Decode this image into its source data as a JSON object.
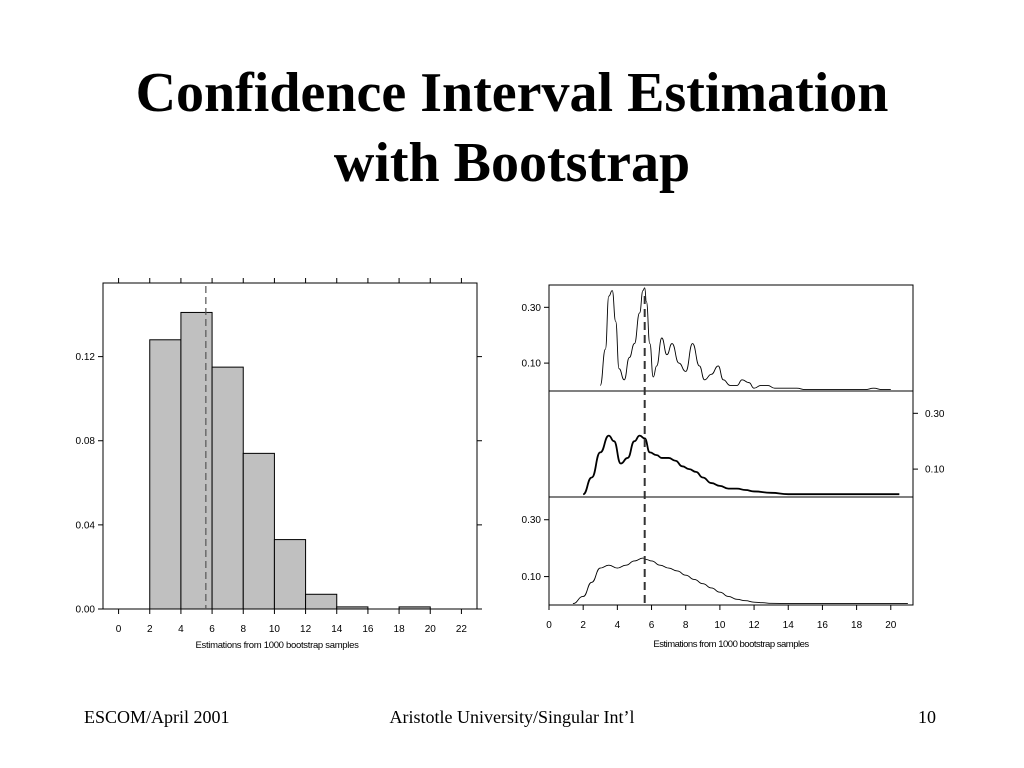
{
  "slide": {
    "title_line1": "Confidence Interval Estimation",
    "title_line2": "with Bootstrap"
  },
  "footer": {
    "left": "ESCOM/April 2001",
    "center": "Aristotle University/Singular Int’l",
    "right": "10"
  },
  "chart_data": [
    {
      "type": "bar",
      "xlabel": "Estimations from 1000 bootstrap samples",
      "ylabel": "",
      "bin_edges": [
        2,
        4,
        6,
        8,
        10,
        12,
        14,
        16,
        18,
        20,
        22
      ],
      "values": [
        0.128,
        0.141,
        0.115,
        0.074,
        0.033,
        0.007,
        0.001,
        0.0,
        0.001,
        0.0
      ],
      "x_ticks": [
        0,
        2,
        4,
        6,
        8,
        10,
        12,
        14,
        16,
        18,
        20,
        22
      ],
      "y_ticks": [
        0.0,
        0.04,
        0.08,
        0.12
      ],
      "y_tick_labels": [
        "0.00",
        "0.04",
        "0.08",
        "0.12"
      ],
      "xlim": [
        -1,
        23
      ],
      "ylim": [
        0,
        0.155
      ],
      "reference_line_x": 5.6,
      "bar_color": "#c0c0c0",
      "grid": false
    },
    {
      "type": "line",
      "xlabel": "Estimations from 1000 bootstrap samples",
      "x_ticks": [
        0,
        2,
        4,
        6,
        8,
        10,
        12,
        14,
        16,
        18,
        20
      ],
      "xlim": [
        0,
        21.3
      ],
      "reference_line_x": 5.6,
      "panels": [
        {
          "y_ticks": [
            0.1,
            0.3
          ],
          "y_tick_labels": [
            "0.10",
            "0.30"
          ],
          "y_axis_side": "left",
          "ylim": [
            0.0,
            0.38
          ],
          "x": [
            3.0,
            3.3,
            3.5,
            3.7,
            3.9,
            4.1,
            4.4,
            4.7,
            5.0,
            5.3,
            5.5,
            5.6,
            5.7,
            5.9,
            6.1,
            6.3,
            6.6,
            6.9,
            7.2,
            7.6,
            8.0,
            8.4,
            8.8,
            9.1,
            9.5,
            9.9,
            10.2,
            10.6,
            11.0,
            11.3,
            11.7,
            12.0,
            12.4,
            12.8,
            13.2,
            13.6,
            14.0,
            14.5,
            15.0,
            16.0,
            17.0,
            18.0,
            18.5,
            19.0,
            19.5,
            20.0
          ],
          "y": [
            0.02,
            0.15,
            0.34,
            0.36,
            0.25,
            0.08,
            0.04,
            0.12,
            0.17,
            0.28,
            0.36,
            0.37,
            0.32,
            0.17,
            0.05,
            0.09,
            0.19,
            0.13,
            0.17,
            0.1,
            0.07,
            0.17,
            0.09,
            0.04,
            0.06,
            0.09,
            0.04,
            0.02,
            0.02,
            0.04,
            0.03,
            0.01,
            0.02,
            0.02,
            0.01,
            0.01,
            0.01,
            0.01,
            0.005,
            0.005,
            0.005,
            0.005,
            0.005,
            0.01,
            0.005,
            0.005
          ]
        },
        {
          "y_ticks": [
            0.1,
            0.3
          ],
          "y_tick_labels": [
            "0.10",
            "0.30"
          ],
          "y_axis_side": "right",
          "ylim": [
            0.0,
            0.38
          ],
          "x": [
            2.0,
            2.5,
            3.0,
            3.5,
            3.8,
            4.2,
            4.6,
            5.0,
            5.3,
            5.6,
            5.9,
            6.3,
            6.6,
            7.0,
            7.4,
            7.8,
            8.2,
            8.6,
            9.0,
            9.5,
            10.0,
            10.5,
            11.0,
            11.5,
            12.0,
            13.0,
            14.0,
            15.0,
            16.0,
            17.0,
            18.0,
            19.0,
            20.0,
            20.5
          ],
          "y": [
            0.01,
            0.07,
            0.16,
            0.22,
            0.2,
            0.12,
            0.14,
            0.2,
            0.22,
            0.21,
            0.16,
            0.15,
            0.14,
            0.14,
            0.13,
            0.11,
            0.1,
            0.09,
            0.07,
            0.05,
            0.04,
            0.03,
            0.03,
            0.025,
            0.02,
            0.015,
            0.01,
            0.01,
            0.01,
            0.01,
            0.01,
            0.01,
            0.01,
            0.01
          ]
        },
        {
          "y_ticks": [
            0.1,
            0.3
          ],
          "y_tick_labels": [
            "0.10",
            "0.30"
          ],
          "y_axis_side": "left",
          "ylim": [
            0.0,
            0.38
          ],
          "x": [
            1.4,
            2.0,
            2.5,
            3.0,
            3.5,
            4.0,
            4.5,
            5.0,
            5.5,
            5.7,
            6.0,
            6.5,
            7.0,
            7.5,
            8.0,
            8.5,
            9.0,
            9.5,
            10.0,
            10.5,
            11.0,
            11.5,
            12.0,
            12.5,
            13.0,
            14.0,
            15.0,
            16.0,
            17.0,
            18.0,
            19.0,
            20.0,
            21.0
          ],
          "y": [
            0.005,
            0.03,
            0.08,
            0.13,
            0.14,
            0.13,
            0.14,
            0.155,
            0.165,
            0.16,
            0.155,
            0.14,
            0.13,
            0.12,
            0.105,
            0.09,
            0.075,
            0.06,
            0.045,
            0.03,
            0.02,
            0.015,
            0.01,
            0.008,
            0.006,
            0.005,
            0.005,
            0.005,
            0.005,
            0.005,
            0.005,
            0.005,
            0.005
          ]
        }
      ]
    }
  ]
}
